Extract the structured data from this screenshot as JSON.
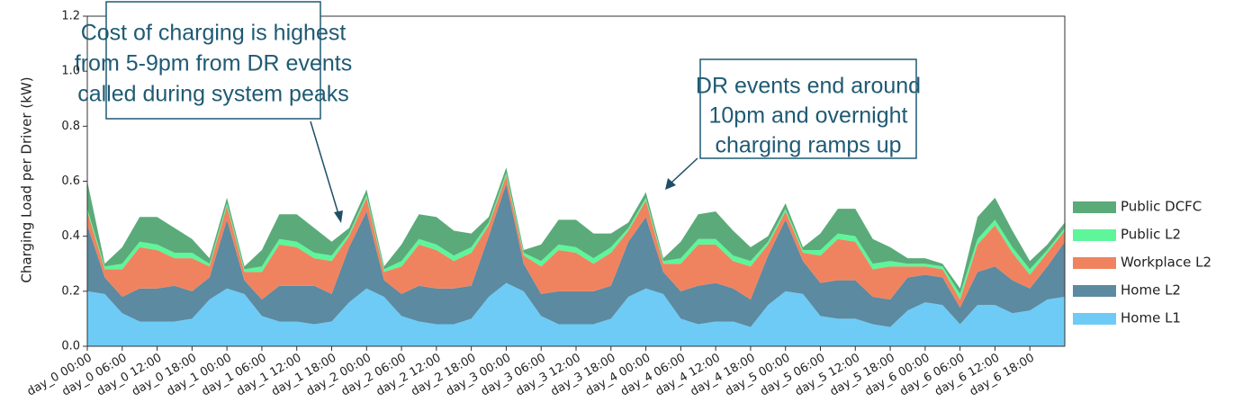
{
  "chart_data": {
    "type": "area",
    "ylabel": "Charging Load per Driver (kW)",
    "x": [
      0,
      3,
      6,
      9,
      12,
      15,
      18,
      21,
      24,
      27,
      30,
      33,
      36,
      39,
      42,
      45,
      48,
      51,
      54,
      57,
      60,
      63,
      66,
      69,
      72,
      75,
      78,
      81,
      84,
      87,
      90,
      93,
      96,
      99,
      102,
      105,
      108,
      111,
      114,
      117,
      120,
      123,
      126,
      129,
      132,
      135,
      138,
      141,
      144,
      147,
      150,
      153,
      156,
      159,
      162,
      165,
      168
    ],
    "xlim": [
      0,
      168
    ],
    "xticks": [
      {
        "value": 0,
        "label": "day_0 00:00"
      },
      {
        "value": 6,
        "label": "day_0 06:00"
      },
      {
        "value": 12,
        "label": "day_0 12:00"
      },
      {
        "value": 18,
        "label": "day_0 18:00"
      },
      {
        "value": 24,
        "label": "day_1 00:00"
      },
      {
        "value": 30,
        "label": "day_1 06:00"
      },
      {
        "value": 36,
        "label": "day_1 12:00"
      },
      {
        "value": 42,
        "label": "day_1 18:00"
      },
      {
        "value": 48,
        "label": "day_2 00:00"
      },
      {
        "value": 54,
        "label": "day_2 06:00"
      },
      {
        "value": 60,
        "label": "day_2 12:00"
      },
      {
        "value": 66,
        "label": "day_2 18:00"
      },
      {
        "value": 72,
        "label": "day_3 00:00"
      },
      {
        "value": 78,
        "label": "day_3 06:00"
      },
      {
        "value": 84,
        "label": "day_3 12:00"
      },
      {
        "value": 90,
        "label": "day_3 18:00"
      },
      {
        "value": 96,
        "label": "day_4 00:00"
      },
      {
        "value": 102,
        "label": "day_4 06:00"
      },
      {
        "value": 108,
        "label": "day_4 12:00"
      },
      {
        "value": 114,
        "label": "day_4 18:00"
      },
      {
        "value": 120,
        "label": "day_5 00:00"
      },
      {
        "value": 126,
        "label": "day_5 06:00"
      },
      {
        "value": 132,
        "label": "day_5 12:00"
      },
      {
        "value": 138,
        "label": "day_5 18:00"
      },
      {
        "value": 144,
        "label": "day_6 00:00"
      },
      {
        "value": 150,
        "label": "day_6 06:00"
      },
      {
        "value": 156,
        "label": "day_6 12:00"
      },
      {
        "value": 162,
        "label": "day_6 18:00"
      }
    ],
    "ylim": [
      0,
      1.2
    ],
    "yticks": [
      {
        "value": 0,
        "label": "0.0"
      },
      0.2,
      0.4,
      0.6,
      0.8,
      {
        "value": 1,
        "label": "1.0"
      },
      1.2
    ],
    "series": [
      {
        "name": "Home L1",
        "color": "#6ecbf5",
        "values": [
          0.2,
          0.19,
          0.12,
          0.09,
          0.09,
          0.09,
          0.1,
          0.17,
          0.21,
          0.19,
          0.11,
          0.09,
          0.09,
          0.08,
          0.09,
          0.16,
          0.21,
          0.18,
          0.11,
          0.09,
          0.08,
          0.08,
          0.1,
          0.18,
          0.23,
          0.2,
          0.11,
          0.08,
          0.08,
          0.08,
          0.1,
          0.18,
          0.21,
          0.19,
          0.1,
          0.08,
          0.09,
          0.09,
          0.07,
          0.15,
          0.2,
          0.19,
          0.11,
          0.1,
          0.1,
          0.08,
          0.07,
          0.13,
          0.16,
          0.15,
          0.08,
          0.15,
          0.15,
          0.12,
          0.13,
          0.17,
          0.18
        ]
      },
      {
        "name": "Home L2",
        "color": "#5b8aa1",
        "values": [
          0.24,
          0.06,
          0.06,
          0.12,
          0.12,
          0.13,
          0.1,
          0.08,
          0.25,
          0.05,
          0.06,
          0.13,
          0.13,
          0.14,
          0.1,
          0.2,
          0.28,
          0.06,
          0.08,
          0.13,
          0.13,
          0.13,
          0.12,
          0.22,
          0.36,
          0.1,
          0.08,
          0.12,
          0.12,
          0.12,
          0.12,
          0.2,
          0.26,
          0.08,
          0.1,
          0.14,
          0.14,
          0.12,
          0.1,
          0.18,
          0.26,
          0.12,
          0.12,
          0.14,
          0.14,
          0.1,
          0.1,
          0.12,
          0.1,
          0.1,
          0.06,
          0.12,
          0.14,
          0.12,
          0.08,
          0.12,
          0.2
        ]
      },
      {
        "name": "Workplace L2",
        "color": "#f0835f",
        "values": [
          0.05,
          0.03,
          0.1,
          0.15,
          0.14,
          0.1,
          0.12,
          0.04,
          0.05,
          0.03,
          0.1,
          0.15,
          0.14,
          0.1,
          0.12,
          0.04,
          0.05,
          0.03,
          0.1,
          0.15,
          0.14,
          0.1,
          0.12,
          0.04,
          0.03,
          0.03,
          0.1,
          0.15,
          0.14,
          0.1,
          0.12,
          0.04,
          0.06,
          0.03,
          0.1,
          0.15,
          0.14,
          0.1,
          0.12,
          0.04,
          0.03,
          0.03,
          0.1,
          0.15,
          0.14,
          0.1,
          0.12,
          0.04,
          0.03,
          0.03,
          0.03,
          0.1,
          0.15,
          0.1,
          0.05,
          0.05,
          0.04
        ]
      },
      {
        "name": "Public L2",
        "color": "#5ef59b",
        "values": [
          0.01,
          0.01,
          0.02,
          0.02,
          0.02,
          0.02,
          0.02,
          0.01,
          0.01,
          0.01,
          0.02,
          0.02,
          0.02,
          0.02,
          0.02,
          0.01,
          0.01,
          0.01,
          0.02,
          0.02,
          0.02,
          0.02,
          0.02,
          0.01,
          0.01,
          0.01,
          0.02,
          0.02,
          0.02,
          0.02,
          0.02,
          0.01,
          0.01,
          0.01,
          0.02,
          0.02,
          0.02,
          0.02,
          0.02,
          0.01,
          0.01,
          0.01,
          0.02,
          0.02,
          0.02,
          0.02,
          0.02,
          0.01,
          0.01,
          0.01,
          0.02,
          0.02,
          0.02,
          0.02,
          0.02,
          0.01,
          0.01
        ]
      },
      {
        "name": "Public DCFC",
        "color": "#5aab79",
        "values": [
          0.1,
          0.01,
          0.06,
          0.09,
          0.1,
          0.09,
          0.05,
          0.02,
          0.02,
          0.01,
          0.06,
          0.09,
          0.1,
          0.09,
          0.05,
          0.02,
          0.02,
          0.01,
          0.06,
          0.09,
          0.1,
          0.09,
          0.05,
          0.02,
          0.02,
          0.01,
          0.06,
          0.09,
          0.1,
          0.09,
          0.05,
          0.02,
          0.02,
          0.01,
          0.06,
          0.09,
          0.1,
          0.09,
          0.05,
          0.02,
          0.02,
          0.01,
          0.06,
          0.09,
          0.1,
          0.09,
          0.05,
          0.02,
          0.02,
          0.01,
          0.02,
          0.08,
          0.08,
          0.06,
          0.03,
          0.02,
          0.02
        ]
      }
    ],
    "annotations": [
      {
        "lines": [
          "Cost of charging is highest",
          "from 5-9pm from DR events",
          "called during system peaks"
        ]
      },
      {
        "lines": [
          "DR events end around",
          "10pm and overnight",
          "charging ramps up"
        ]
      }
    ]
  }
}
